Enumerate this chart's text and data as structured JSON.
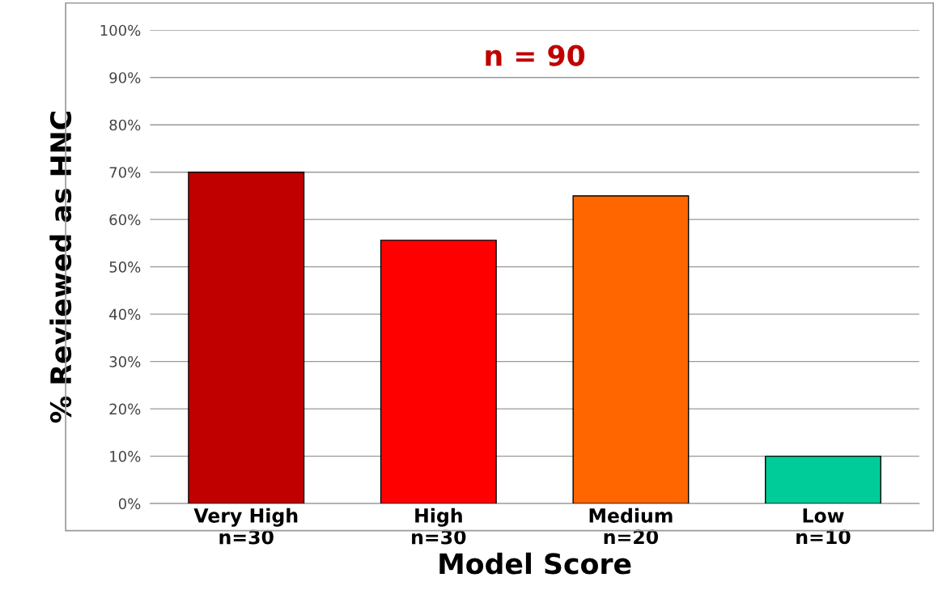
{
  "chart_data": {
    "type": "bar",
    "title": "n = 90",
    "xlabel": "Model Score",
    "ylabel": "% Reviewed as HNC",
    "categories": [
      "Very High\nn=30",
      "High\nn=30",
      "Medium\nn=20",
      "Low\nn=10"
    ],
    "values": [
      70,
      55.6,
      65,
      10
    ],
    "colors": [
      "#c00000",
      "#ff0000",
      "#ff6600",
      "#00cc99"
    ],
    "ylim": [
      0,
      100
    ],
    "yticks": [
      {
        "value": 0,
        "label": "0%"
      },
      {
        "value": 10,
        "label": "10%"
      },
      {
        "value": 20,
        "label": "20%"
      },
      {
        "value": 30,
        "label": "30%"
      },
      {
        "value": 40,
        "label": "40%"
      },
      {
        "value": 50,
        "label": "50%"
      },
      {
        "value": 60,
        "label": "60%"
      },
      {
        "value": 70,
        "label": "70%"
      },
      {
        "value": 80,
        "label": "80%"
      },
      {
        "value": 90,
        "label": "90%"
      },
      {
        "value": 100,
        "label": "100%"
      }
    ],
    "grid": "y"
  }
}
